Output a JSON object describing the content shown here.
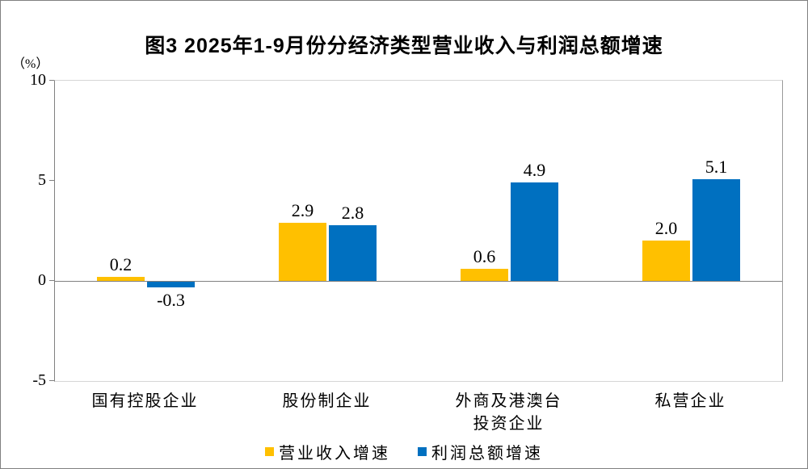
{
  "chart_data": {
    "type": "bar",
    "title": "图3 2025年1-9月份分经济类型营业收入与利润总额增速",
    "ylabel": "（%）",
    "ylim": [
      -5,
      10
    ],
    "yticks": [
      10,
      5,
      0,
      -5
    ],
    "grid": false,
    "legend_position": "bottom",
    "categories": [
      "国有控股企业",
      "股份制企业",
      "外商及港澳台\n投资企业",
      "私营企业"
    ],
    "series": [
      {
        "name": "营业收入增速",
        "color": "#FFC000",
        "values": [
          0.2,
          2.9,
          0.6,
          2.0
        ],
        "labels": [
          "0.2",
          "2.9",
          "0.6",
          "2.0"
        ]
      },
      {
        "name": "利润总额增速",
        "color": "#0070C0",
        "values": [
          -0.3,
          2.8,
          4.9,
          5.1
        ],
        "labels": [
          "-0.3",
          "2.8",
          "4.9",
          "5.1"
        ]
      }
    ],
    "axis_color": "#808080",
    "plot_border_color": "#D6D6D6"
  }
}
